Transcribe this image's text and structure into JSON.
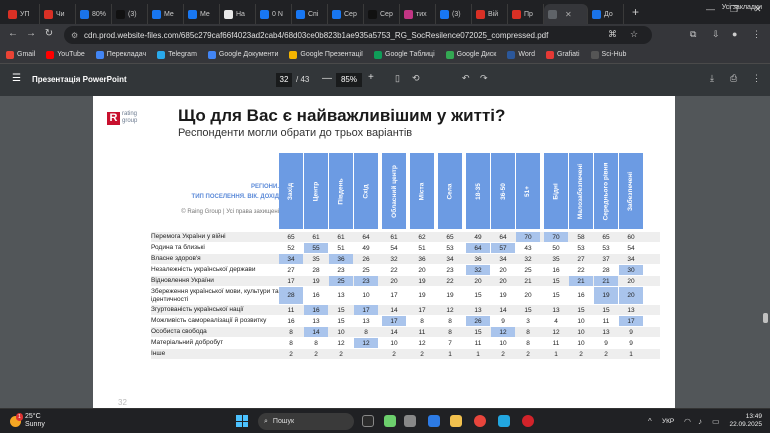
{
  "browser": {
    "tabs": [
      {
        "label": "УП",
        "color": "#d93025"
      },
      {
        "label": "Чи",
        "color": "#d93025"
      },
      {
        "label": "80%",
        "color": "#1a73e8"
      },
      {
        "label": "(3)",
        "color": "#111111"
      },
      {
        "label": "Me",
        "color": "#1877f2"
      },
      {
        "label": "Ме",
        "color": "#1877f2"
      },
      {
        "label": "На",
        "color": "#e8e8e8"
      },
      {
        "label": "0 N",
        "color": "#1877f2"
      },
      {
        "label": "Спі",
        "color": "#1877f2"
      },
      {
        "label": "Сер",
        "color": "#1877f2"
      },
      {
        "label": "Сер",
        "color": "#111111"
      },
      {
        "label": "тих",
        "color": "#c13584"
      },
      {
        "label": "(3)",
        "color": "#1877f2"
      },
      {
        "label": "Вій",
        "color": "#d93025"
      },
      {
        "label": "Пр",
        "color": "#d93025"
      },
      {
        "label": "",
        "color": "#5f6368",
        "active": true
      },
      {
        "label": "До",
        "color": "#1a73e8"
      }
    ],
    "url": "cdn.prod.website-files.com/685c279caf66f4023ad2cab4/68d03ce0b823b1ae935a5753_RG_SocResilence072025_compressed.pdf",
    "bookmarks": [
      {
        "label": "Gmail",
        "color": "#ea4335"
      },
      {
        "label": "YouTube",
        "color": "#ff0000"
      },
      {
        "label": "Перекладач",
        "color": "#4285f4"
      },
      {
        "label": "Telegram",
        "color": "#29a9eb"
      },
      {
        "label": "Google Документи",
        "color": "#4285f4"
      },
      {
        "label": "Google Презентації",
        "color": "#f4b400"
      },
      {
        "label": "Google Таблиці",
        "color": "#0f9d58"
      },
      {
        "label": "Google Диск",
        "color": "#34a853"
      },
      {
        "label": "Word",
        "color": "#2b579a"
      },
      {
        "label": "Grafiati",
        "color": "#e53935"
      },
      {
        "label": "Sci-Hub",
        "color": "#555555"
      }
    ],
    "all_bookmarks": "Усі закладки"
  },
  "pdf": {
    "title": "Презентація PowerPoint",
    "page": "32",
    "total": "/ 43",
    "zoom": "85%",
    "page_number_label": "32"
  },
  "slide": {
    "logo_text_1": "rating",
    "logo_text_2": "group",
    "title": "Що для Вас є найважливішим у житті?",
    "subtitle": "Респонденти могли обрати до трьох варіантів",
    "rowhead_1": "РЕГІОНИ.",
    "rowhead_2": "ТИП ПОСЕЛЕННЯ. ВІК. ДОХІД",
    "copyright": "© Raing Group | Усі права захищені",
    "columns": [
      "Захід",
      "Центр",
      "Південь",
      "Схід",
      "Обласний центр",
      "Міста",
      "Села",
      "18-35",
      "36-50",
      "51+",
      "Бідні",
      "Малозабезпечені",
      "Середнього рівня",
      "Забезпечені"
    ],
    "rows": [
      {
        "label": "Перемога України у війні",
        "values": [
          "65",
          "61",
          "61",
          "64",
          "61",
          "62",
          "65",
          "49",
          "64",
          "70",
          "70",
          "58",
          "65",
          "60"
        ],
        "hl": [
          9,
          10
        ]
      },
      {
        "label": "Родина та близькі",
        "values": [
          "52",
          "55",
          "51",
          "49",
          "54",
          "51",
          "53",
          "64",
          "57",
          "43",
          "50",
          "53",
          "53",
          "54"
        ],
        "hl": [
          1,
          7,
          8
        ]
      },
      {
        "label": "Власне здоров'я",
        "values": [
          "34",
          "35",
          "36",
          "26",
          "32",
          "36",
          "34",
          "36",
          "34",
          "32",
          "35",
          "27",
          "37",
          "34"
        ],
        "hl": [
          0,
          2
        ]
      },
      {
        "label": "Незалежність української держави",
        "values": [
          "27",
          "28",
          "23",
          "25",
          "22",
          "20",
          "23",
          "32",
          "20",
          "25",
          "16",
          "22",
          "28",
          "30"
        ],
        "hl": [
          7,
          13
        ]
      },
      {
        "label": "Відновлення України",
        "values": [
          "17",
          "19",
          "25",
          "23",
          "20",
          "19",
          "22",
          "20",
          "20",
          "21",
          "15",
          "21",
          "21",
          "20"
        ],
        "hl": [
          2,
          3,
          11,
          12
        ]
      },
      {
        "label": "Збереження української мови, культури та ідентичності",
        "values": [
          "28",
          "16",
          "13",
          "10",
          "17",
          "19",
          "19",
          "15",
          "19",
          "20",
          "15",
          "16",
          "19",
          "20"
        ],
        "hl": [
          0,
          12,
          13
        ],
        "tall": true
      },
      {
        "label": "Згуртованість української нації",
        "values": [
          "11",
          "16",
          "15",
          "17",
          "14",
          "17",
          "12",
          "13",
          "14",
          "15",
          "13",
          "15",
          "15",
          "13"
        ],
        "hl": [
          1,
          3
        ]
      },
      {
        "label": "Можливість самореалізації й розвитку",
        "values": [
          "16",
          "13",
          "15",
          "13",
          "17",
          "8",
          "8",
          "26",
          "9",
          "3",
          "4",
          "10",
          "11",
          "17"
        ],
        "hl": [
          4,
          7,
          13
        ]
      },
      {
        "label": "Особиста свобода",
        "values": [
          "8",
          "14",
          "10",
          "8",
          "14",
          "11",
          "8",
          "15",
          "12",
          "8",
          "12",
          "10",
          "13",
          "9"
        ],
        "hl": [
          1,
          8
        ]
      },
      {
        "label": "Матеріальний добробут",
        "values": [
          "8",
          "8",
          "12",
          "12",
          "10",
          "12",
          "7",
          "11",
          "10",
          "8",
          "11",
          "10",
          "9",
          "9"
        ],
        "hl": [
          3
        ]
      },
      {
        "label": "Інше",
        "values": [
          "2",
          "2",
          "2",
          "",
          "2",
          "2",
          "1",
          "1",
          "2",
          "2",
          "1",
          "2",
          "2",
          "1"
        ],
        "hl": []
      }
    ]
  },
  "taskbar": {
    "temp": "25°C",
    "weather": "Sunny",
    "badge": "1",
    "search": "Пошук",
    "lang": "УКР",
    "time": "13:49",
    "date": "22.09.2025"
  }
}
